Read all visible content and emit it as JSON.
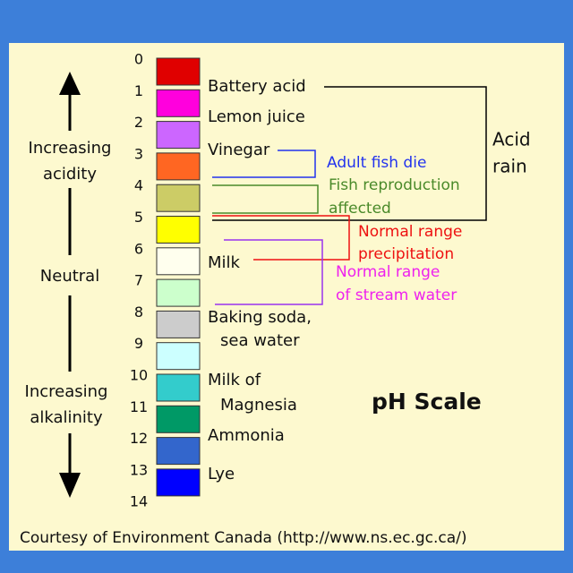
{
  "title": "pH Scale",
  "scale": [
    0,
    1,
    2,
    3,
    4,
    5,
    6,
    7,
    8,
    9,
    10,
    11,
    12,
    13,
    14
  ],
  "direction": {
    "acid": [
      "Increasing",
      "acidity"
    ],
    "neutral": "Neutral",
    "alkaline": [
      "Increasing",
      "alkalinity"
    ]
  },
  "substances": [
    {
      "lines": [
        "Battery acid"
      ]
    },
    {
      "lines": [
        "Lemon juice"
      ]
    },
    {
      "lines": [
        "Vinegar"
      ]
    },
    {
      "lines": [
        "Milk"
      ]
    },
    {
      "lines": [
        "Baking soda,",
        "sea water"
      ]
    },
    {
      "lines": [
        "Milk of",
        "Magnesia"
      ]
    },
    {
      "lines": [
        "Ammonia"
      ]
    },
    {
      "lines": [
        "Lye"
      ]
    }
  ],
  "annotations": {
    "acid_rain": [
      "Acid",
      "rain"
    ],
    "fish_die": [
      "Adult fish die"
    ],
    "fish_reproduction": [
      "Fish reproduction",
      "affected"
    ],
    "precipitation": [
      "Normal range",
      "precipitation"
    ],
    "stream_water": [
      "Normal range",
      "of stream water"
    ]
  },
  "credit": "Courtesy of Environment Canada (http://www.ns.ec.gc.ca/)"
}
